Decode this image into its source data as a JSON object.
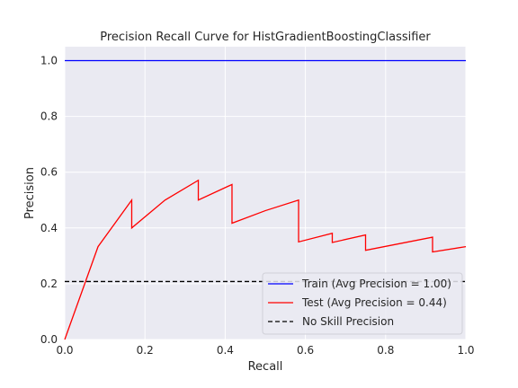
{
  "chart_data": {
    "type": "line",
    "title": "Precision Recall Curve for HistGradientBoostingClassifier",
    "xlabel": "Recall",
    "ylabel": "Precision",
    "xlim": [
      0.0,
      1.0
    ],
    "ylim": [
      0.0,
      1.05
    ],
    "x_ticks": [
      "0.0",
      "0.2",
      "0.4",
      "0.6",
      "0.8",
      "1.0"
    ],
    "y_ticks": [
      "0.0",
      "0.2",
      "0.4",
      "0.6",
      "0.8",
      "1.0"
    ],
    "grid": true,
    "legend_position": "lower-right",
    "series": [
      {
        "name": "Train (Avg Precision = 1.00)",
        "color": "#0000ff",
        "style": "solid",
        "x": [
          0.0,
          1.0
        ],
        "y": [
          1.0,
          1.0
        ]
      },
      {
        "name": "Test (Avg Precision = 0.44)",
        "color": "#ff0000",
        "style": "solid",
        "x": [
          0.0,
          0.083,
          0.167,
          0.167,
          0.25,
          0.333,
          0.333,
          0.417,
          0.417,
          0.5,
          0.583,
          0.583,
          0.667,
          0.667,
          0.75,
          0.75,
          0.917,
          0.917,
          1.0
        ],
        "y": [
          0.0,
          0.333,
          0.5,
          0.4,
          0.5,
          0.571,
          0.5,
          0.556,
          0.417,
          0.462,
          0.5,
          0.35,
          0.381,
          0.348,
          0.375,
          0.32,
          0.367,
          0.314,
          0.333
        ]
      },
      {
        "name": "No Skill Precision",
        "color": "#000000",
        "style": "dashed",
        "x": [
          0.0,
          1.0
        ],
        "y": [
          0.208,
          0.208
        ]
      }
    ]
  }
}
